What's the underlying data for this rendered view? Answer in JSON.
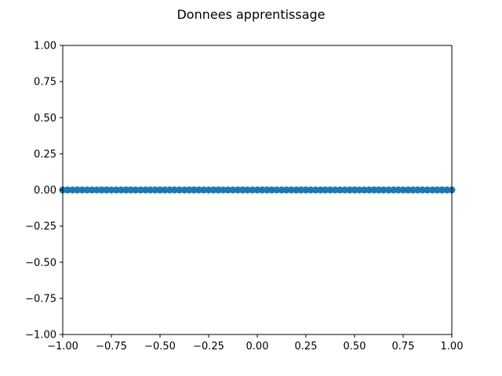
{
  "figure": {
    "title": "Donnees apprentissage"
  },
  "chart_data": {
    "type": "scatter",
    "title": "Donnees apprentissage",
    "xlabel": "",
    "ylabel": "",
    "xlim": [
      -1.0,
      1.0
    ],
    "ylim": [
      -1.0,
      1.0
    ],
    "xticks": [
      -1.0,
      -0.75,
      -0.5,
      -0.25,
      0.0,
      0.25,
      0.5,
      0.75,
      1.0
    ],
    "yticks": [
      -1.0,
      -0.75,
      -0.5,
      -0.25,
      0.0,
      0.25,
      0.5,
      0.75,
      1.0
    ],
    "xtick_labels": [
      "−1.00",
      "−0.75",
      "−0.50",
      "−0.25",
      "0.00",
      "0.25",
      "0.50",
      "0.75",
      "1.00"
    ],
    "ytick_labels": [
      "−1.00",
      "−0.75",
      "−0.50",
      "−0.25",
      "0.00",
      "0.25",
      "0.50",
      "0.75",
      "1.00"
    ],
    "grid": false,
    "marker_color": "#1f77b4",
    "series": [
      {
        "x": [
          -1.0,
          -0.975,
          -0.95,
          -0.925,
          -0.9,
          -0.875,
          -0.85,
          -0.825,
          -0.8,
          -0.775,
          -0.75,
          -0.725,
          -0.7,
          -0.675,
          -0.65,
          -0.625,
          -0.6,
          -0.575,
          -0.55,
          -0.525,
          -0.5,
          -0.475,
          -0.45,
          -0.425,
          -0.4,
          -0.375,
          -0.35,
          -0.325,
          -0.3,
          -0.275,
          -0.25,
          -0.225,
          -0.2,
          -0.175,
          -0.15,
          -0.125,
          -0.1,
          -0.075,
          -0.05,
          -0.025,
          0.0,
          0.025,
          0.05,
          0.075,
          0.1,
          0.125,
          0.15,
          0.175,
          0.2,
          0.225,
          0.25,
          0.275,
          0.3,
          0.325,
          0.35,
          0.375,
          0.4,
          0.425,
          0.45,
          0.475,
          0.5,
          0.525,
          0.55,
          0.575,
          0.6,
          0.625,
          0.65,
          0.675,
          0.7,
          0.725,
          0.75,
          0.775,
          0.8,
          0.825,
          0.85,
          0.875,
          0.9,
          0.925,
          0.95,
          0.975,
          1.0
        ],
        "y": [
          0.0,
          0.0,
          0.0,
          0.0,
          0.0,
          0.0,
          0.0,
          0.0,
          0.0,
          0.0,
          0.0,
          0.0,
          0.0,
          0.0,
          0.0,
          0.0,
          0.0,
          0.0,
          0.0,
          0.0,
          0.0,
          0.0,
          0.0,
          0.0,
          0.0,
          0.0,
          0.0,
          0.0,
          0.0,
          0.0,
          0.0,
          0.0,
          0.0,
          0.0,
          0.0,
          0.0,
          0.0,
          0.0,
          0.0,
          0.0,
          0.0,
          0.0,
          0.0,
          0.0,
          0.0,
          0.0,
          0.0,
          0.0,
          0.0,
          0.0,
          0.0,
          0.0,
          0.0,
          0.0,
          0.0,
          0.0,
          0.0,
          0.0,
          0.0,
          0.0,
          0.0,
          0.0,
          0.0,
          0.0,
          0.0,
          0.0,
          0.0,
          0.0,
          0.0,
          0.0,
          0.0,
          0.0,
          0.0,
          0.0,
          0.0,
          0.0,
          0.0,
          0.0,
          0.0,
          0.0,
          0.0
        ]
      }
    ]
  }
}
